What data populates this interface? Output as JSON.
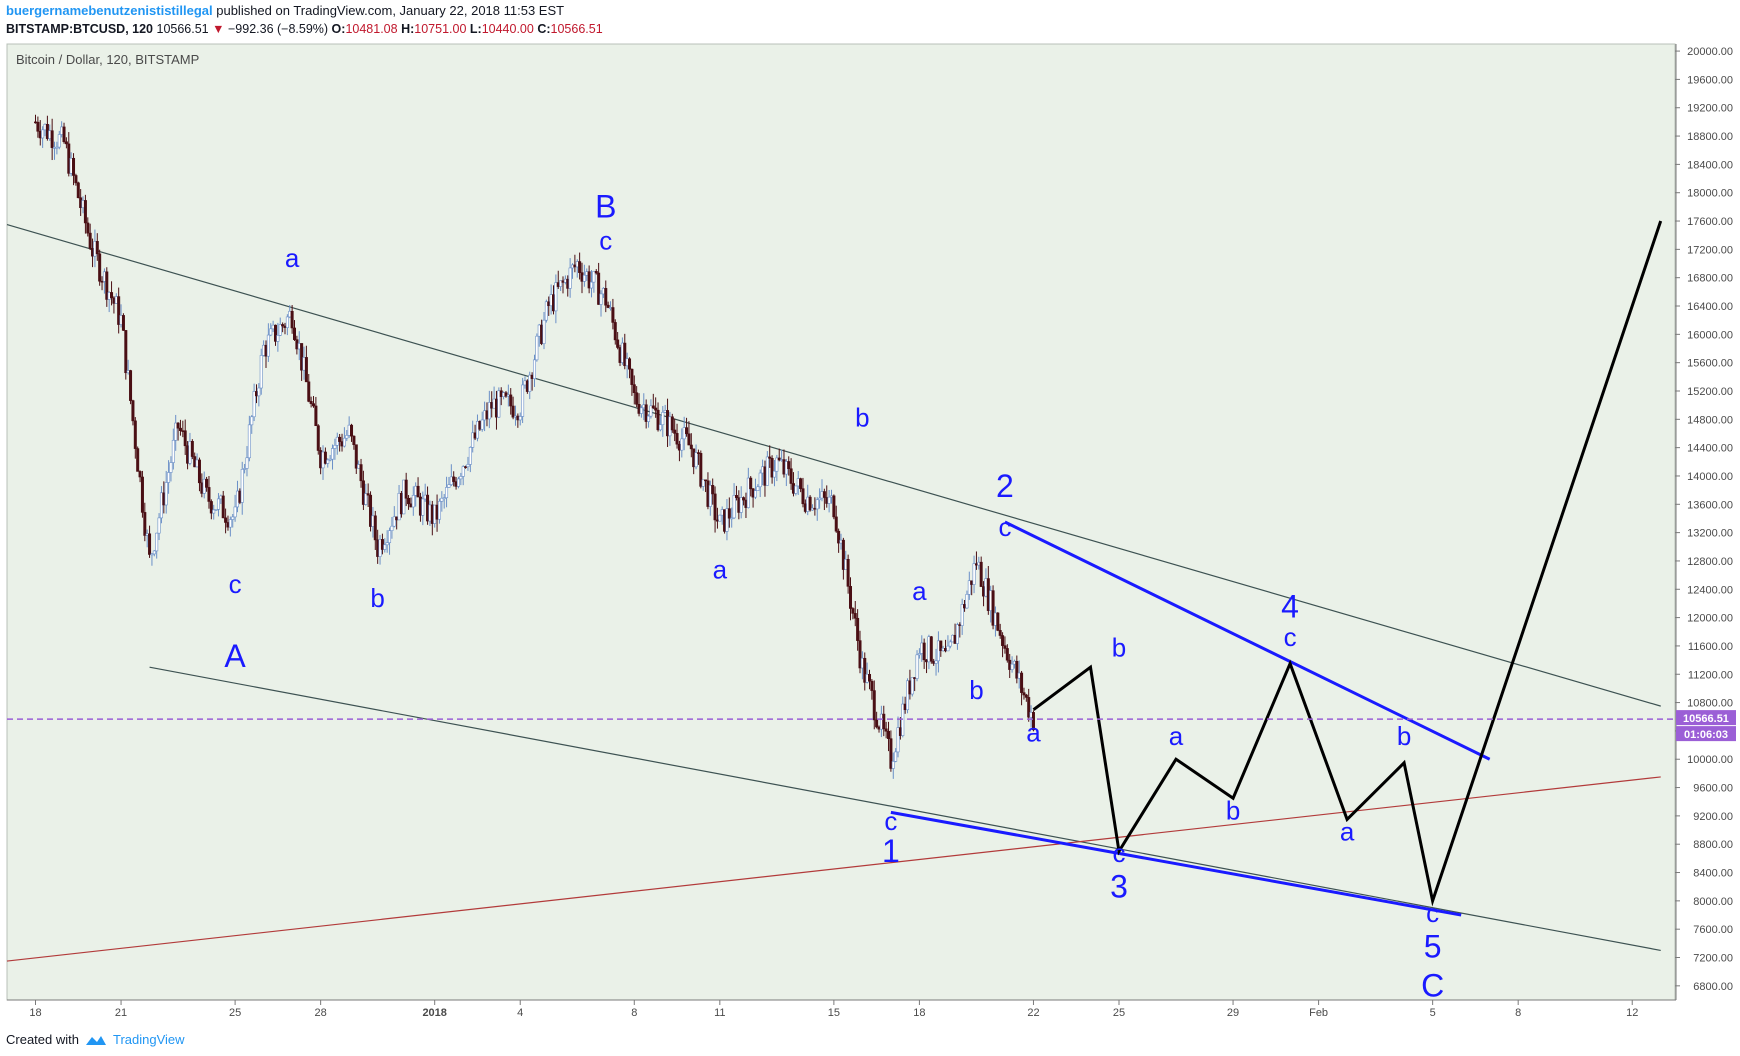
{
  "header": {
    "author": "buergernamebenutzenististillegal",
    "published": "published on TradingView.com, January 22, 2018 11:53 EST"
  },
  "ohlc": {
    "symbol": "BITSTAMP:BTCUSD, 120",
    "last": "10566.51",
    "change": "−992.36 (−8.59%)",
    "open_label": "O:",
    "open": "10481.08",
    "high_label": "H:",
    "high": "10751.00",
    "low_label": "L:",
    "low": "10440.00",
    "close_label": "C:",
    "close": "10566.51"
  },
  "chart_title": "Bitcoin / Dollar, 120, BITSTAMP",
  "footer": {
    "created_with": "Created with",
    "brand": "TradingView"
  },
  "colors": {
    "background": "#eaf1e8",
    "up": "#6a8fc7",
    "down": "#4a0f14",
    "wave_blue": "#1a1aff",
    "projection": "#000000",
    "trend_channel": "#3d5252",
    "trend_red": "#b23a3a",
    "price_line": "#9b5fd6"
  },
  "chart_data": {
    "type": "candlestick",
    "title": "Bitcoin / Dollar, 120, BITSTAMP",
    "x_axis_dates": [
      "18",
      "21",
      "25",
      "28",
      "2018",
      "4",
      "8",
      "11",
      "15",
      "18",
      "22",
      "25",
      "29",
      "Feb",
      "5",
      "8",
      "12"
    ],
    "y_ticks": [
      6800,
      7200,
      7600,
      8000,
      8400,
      8800,
      9200,
      9600,
      10000,
      10400,
      10800,
      11200,
      11600,
      12000,
      12400,
      12800,
      13200,
      13600,
      14000,
      14400,
      14800,
      15200,
      15600,
      16000,
      16400,
      16800,
      17200,
      17600,
      18000,
      18400,
      18800,
      19200,
      19600,
      20000
    ],
    "ylim": [
      6600,
      20100
    ],
    "last_price": 10566.51,
    "countdown": "01:06:03",
    "price_path": [
      [
        "2017-12-18",
        19000
      ],
      [
        "2017-12-19",
        18700
      ],
      [
        "2017-12-20",
        17200
      ],
      [
        "2017-12-21",
        16200
      ],
      [
        "2017-12-22",
        12800
      ],
      [
        "2017-12-23",
        14700
      ],
      [
        "2017-12-24",
        13700
      ],
      [
        "2017-12-25",
        13400
      ],
      [
        "2017-12-26",
        15800
      ],
      [
        "2017-12-27",
        16300
      ],
      [
        "2017-12-28",
        14300
      ],
      [
        "2017-12-29",
        14600
      ],
      [
        "2017-12-30",
        13000
      ],
      [
        "2017-12-31",
        13800
      ],
      [
        "2018-01-01",
        13400
      ],
      [
        "2018-01-02",
        14200
      ],
      [
        "2018-01-03",
        15000
      ],
      [
        "2018-01-04",
        15000
      ],
      [
        "2018-01-05",
        16400
      ],
      [
        "2018-01-06",
        17000
      ],
      [
        "2018-01-07",
        16500
      ],
      [
        "2018-01-08",
        15100
      ],
      [
        "2018-01-09",
        14800
      ],
      [
        "2018-01-10",
        14400
      ],
      [
        "2018-01-11",
        13300
      ],
      [
        "2018-01-12",
        13800
      ],
      [
        "2018-01-13",
        14200
      ],
      [
        "2018-01-14",
        13700
      ],
      [
        "2018-01-15",
        13600
      ],
      [
        "2018-01-16",
        11300
      ],
      [
        "2018-01-17",
        10000
      ],
      [
        "2018-01-18",
        11600
      ],
      [
        "2018-01-19",
        11400
      ],
      [
        "2018-01-20",
        12800
      ],
      [
        "2018-01-21",
        11600
      ],
      [
        "2018-01-22",
        10566.51
      ]
    ],
    "projection_path": [
      [
        "2018-01-22",
        10700
      ],
      [
        "2018-01-24",
        11300
      ],
      [
        "2018-01-25",
        8700
      ],
      [
        "2018-01-27",
        10000
      ],
      [
        "2018-01-29",
        9450
      ],
      [
        "2018-01-31",
        11350
      ],
      [
        "2018-02-02",
        9150
      ],
      [
        "2018-02-04",
        9950
      ],
      [
        "2018-02-05",
        8000
      ],
      [
        "2018-02-13",
        17600
      ]
    ],
    "wave_labels": [
      {
        "text": "B",
        "date": "2018-01-07",
        "price": 17650,
        "size": "large"
      },
      {
        "text": "c",
        "date": "2018-01-07",
        "price": 17200,
        "size": "small"
      },
      {
        "text": "a",
        "date": "2017-12-27",
        "price": 16950,
        "size": "small"
      },
      {
        "text": "c",
        "date": "2017-12-25",
        "price": 12350,
        "size": "small"
      },
      {
        "text": "A",
        "date": "2017-12-25",
        "price": 11300,
        "size": "large"
      },
      {
        "text": "b",
        "date": "2017-12-30",
        "price": 12150,
        "size": "small"
      },
      {
        "text": "b",
        "date": "2018-01-16",
        "price": 14700,
        "size": "small"
      },
      {
        "text": "a",
        "date": "2018-01-11",
        "price": 12550,
        "size": "small"
      },
      {
        "text": "2",
        "date": "2018-01-21",
        "price": 13700,
        "size": "large"
      },
      {
        "text": "c",
        "date": "2018-01-21",
        "price": 13150,
        "size": "small"
      },
      {
        "text": "a",
        "date": "2018-01-18",
        "price": 12250,
        "size": "small"
      },
      {
        "text": "b",
        "date": "2018-01-20",
        "price": 10850,
        "size": "small"
      },
      {
        "text": "a",
        "date": "2018-01-22",
        "price": 10250,
        "size": "small"
      },
      {
        "text": "c",
        "date": "2018-01-17",
        "price": 9000,
        "size": "small"
      },
      {
        "text": "1",
        "date": "2018-01-17",
        "price": 8550,
        "size": "large"
      },
      {
        "text": "b",
        "date": "2018-01-25",
        "price": 11450,
        "size": "small"
      },
      {
        "text": "c",
        "date": "2018-01-25",
        "price": 8550,
        "size": "small"
      },
      {
        "text": "3",
        "date": "2018-01-25",
        "price": 8050,
        "size": "large"
      },
      {
        "text": "a",
        "date": "2018-01-27",
        "price": 10200,
        "size": "small"
      },
      {
        "text": "b",
        "date": "2018-01-29",
        "price": 9150,
        "size": "small"
      },
      {
        "text": "4",
        "date": "2018-01-31",
        "price": 12000,
        "size": "large"
      },
      {
        "text": "c",
        "date": "2018-01-31",
        "price": 11600,
        "size": "small"
      },
      {
        "text": "a",
        "date": "2018-02-02",
        "price": 8850,
        "size": "small"
      },
      {
        "text": "b",
        "date": "2018-02-04",
        "price": 10200,
        "size": "small"
      },
      {
        "text": "c",
        "date": "2018-02-05",
        "price": 7700,
        "size": "small"
      },
      {
        "text": "5",
        "date": "2018-02-05",
        "price": 7200,
        "size": "large"
      },
      {
        "text": "C",
        "date": "2018-02-05",
        "price": 6650,
        "size": "large"
      }
    ],
    "trend_lines": [
      {
        "name": "upper-channel",
        "from": [
          "2017-12-17",
          17550
        ],
        "to": [
          "2018-02-13",
          10750
        ],
        "color": "#3d5252"
      },
      {
        "name": "lower-channel",
        "from": [
          "2017-12-22",
          11300
        ],
        "to": [
          "2018-02-13",
          7300
        ],
        "color": "#3d5252"
      },
      {
        "name": "rising-support",
        "from": [
          "2017-12-17",
          7150
        ],
        "to": [
          "2018-02-13",
          9750
        ],
        "color": "#b23a3a"
      },
      {
        "name": "wave-upper",
        "from": [
          "2018-01-21",
          13350
        ],
        "to": [
          "2018-02-07",
          10000
        ],
        "color": "#1a1aff"
      },
      {
        "name": "wave-lower",
        "from": [
          "2018-01-17",
          9250
        ],
        "to": [
          "2018-02-06",
          7800
        ],
        "color": "#1a1aff"
      }
    ]
  }
}
